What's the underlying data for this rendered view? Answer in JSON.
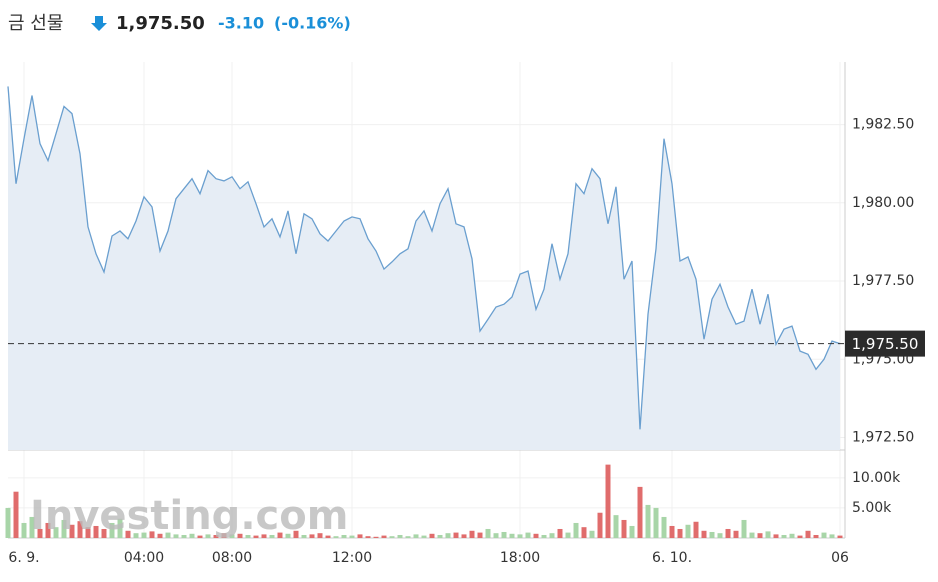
{
  "header": {
    "title": "금 선물",
    "price": "1,975.50",
    "change": "-3.10",
    "change_percent": "(-0.16%)"
  },
  "watermark": "Investing.com",
  "chart_data": {
    "type": "area",
    "categories": [
      null,
      null,
      "6. 9.",
      null,
      null,
      null,
      null,
      null,
      null,
      null,
      null,
      null,
      null,
      null,
      null,
      null,
      null,
      "04:00",
      null,
      null,
      null,
      null,
      null,
      null,
      null,
      null,
      null,
      null,
      "08:00",
      null,
      null,
      null,
      null,
      null,
      null,
      null,
      null,
      null,
      null,
      null,
      null,
      null,
      null,
      "12:00",
      null,
      null,
      null,
      null,
      null,
      null,
      null,
      null,
      null,
      null,
      null,
      null,
      null,
      null,
      null,
      null,
      null,
      null,
      null,
      null,
      "18:00",
      null,
      null,
      null,
      null,
      null,
      null,
      null,
      null,
      null,
      null,
      null,
      null,
      null,
      null,
      null,
      null,
      null,
      null,
      "6. 10.",
      null,
      null,
      null,
      null,
      null,
      null,
      null,
      null,
      null,
      null,
      null,
      null,
      null,
      null,
      null,
      null,
      null,
      null,
      null,
      null,
      "06"
    ],
    "series": [
      {
        "color": "#6a9fcf",
        "fill": "#e6edf5",
        "values": [
          1983.72,
          1980.61,
          1982.05,
          1983.43,
          1981.89,
          1981.35,
          1982.21,
          1983.08,
          1982.85,
          1981.57,
          1979.23,
          1978.37,
          1977.79,
          1978.94,
          1979.1,
          1978.85,
          1979.42,
          1980.19,
          1979.87,
          1978.46,
          1979.1,
          1980.13,
          1980.45,
          1980.77,
          1980.29,
          1981.03,
          1980.77,
          1980.7,
          1980.83,
          1980.45,
          1980.67,
          1979.97,
          1979.23,
          1979.49,
          1978.91,
          1979.74,
          1978.37,
          1979.65,
          1979.49,
          1979.01,
          1978.78,
          1979.1,
          1979.42,
          1979.55,
          1979.49,
          1978.85,
          1978.46,
          1977.88,
          1978.11,
          1978.37,
          1978.53,
          1979.42,
          1979.74,
          1979.1,
          1979.97,
          1980.45,
          1979.33,
          1979.23,
          1978.21,
          1975.9,
          1976.28,
          1976.67,
          1976.76,
          1976.99,
          1977.72,
          1977.82,
          1976.6,
          1977.24,
          1978.69,
          1977.56,
          1978.37,
          1980.61,
          1980.29,
          1981.09,
          1980.77,
          1979.33,
          1980.51,
          1977.56,
          1978.14,
          1972.76,
          1976.44,
          1978.53,
          1982.05,
          1980.61,
          1978.14,
          1978.27,
          1977.56,
          1975.64,
          1976.92,
          1977.4,
          1976.67,
          1976.12,
          1976.22,
          1977.24,
          1976.12,
          1977.08,
          1975.48,
          1975.96,
          1976.06,
          1975.26,
          1975.16,
          1974.68,
          1975.0,
          1975.58,
          1975.5
        ]
      },
      {
        "type": "bar",
        "axis": "y2",
        "color": "#a8d5a8",
        "down_color": "#e06c6c",
        "values": [
          5000,
          7700,
          2500,
          3500,
          1500,
          2500,
          1800,
          3000,
          2200,
          2800,
          1800,
          2000,
          1500,
          2500,
          3200,
          1200,
          800,
          900,
          1100,
          700,
          900,
          600,
          500,
          700,
          400,
          600,
          500,
          800,
          600,
          700,
          500,
          400,
          600,
          500,
          900,
          700,
          1200,
          500,
          600,
          800,
          400,
          300,
          500,
          400,
          600,
          300,
          200,
          400,
          300,
          500,
          300,
          600,
          400,
          700,
          500,
          800,
          900,
          600,
          1200,
          900,
          1500,
          800,
          1000,
          700,
          600,
          900,
          700,
          500,
          800,
          1500,
          900,
          2500,
          1800,
          1200,
          4200,
          12200,
          3800,
          3000,
          2000,
          8500,
          5500,
          5000,
          3500,
          2000,
          1500,
          2200,
          2700,
          1200,
          1000,
          800,
          1500,
          1200,
          3000,
          900,
          800,
          1100,
          600,
          500,
          700,
          400,
          1200,
          500,
          900,
          600,
          400
        ]
      }
    ],
    "ylim": [
      1972.1,
      1984.5
    ],
    "yticks": [
      {
        "value": 1972.5,
        "label": "1,972.50"
      },
      {
        "value": 1975,
        "label": "1,975.00"
      },
      {
        "value": 1977.5,
        "label": "1,977.50"
      },
      {
        "value": 1980,
        "label": "1,980.00"
      },
      {
        "value": 1982.5,
        "label": "1,982.50"
      }
    ],
    "y2lim": [
      0,
      14300
    ],
    "y2ticks": [
      {
        "value": 5000,
        "label": "5.00k"
      },
      {
        "value": 10000,
        "label": "10.00k"
      }
    ],
    "last_price": {
      "value": 1975.5,
      "label": "1,975.50"
    },
    "grid": true
  }
}
